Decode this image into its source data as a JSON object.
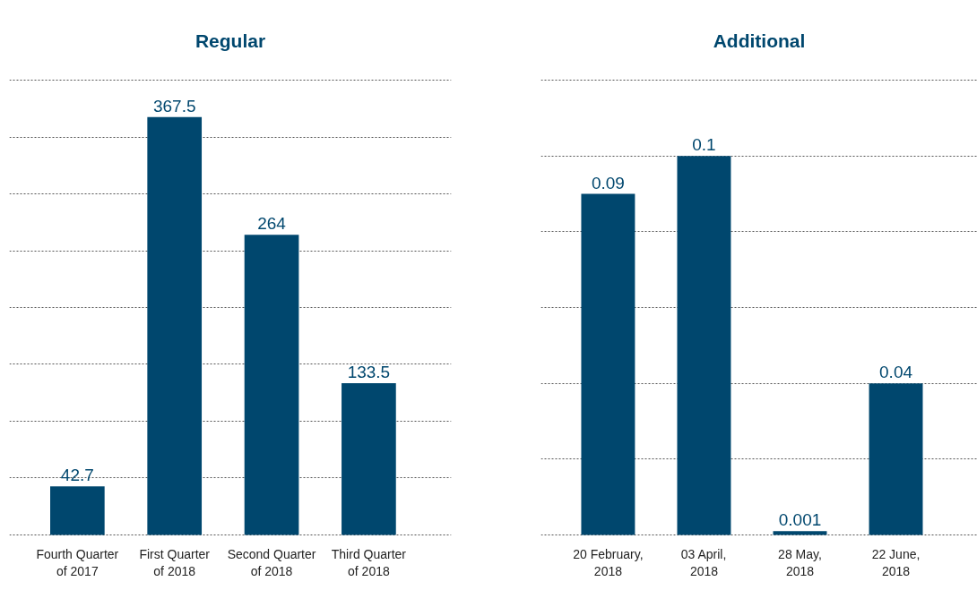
{
  "chart_data": [
    {
      "type": "bar",
      "title": "Regular",
      "categories": [
        "Fourth Quarter\nof 2017",
        "First Quarter\nof 2018",
        "Second Quarter\nof 2018",
        "Third Quarter\nof 2018"
      ],
      "series": [
        {
          "color": "#00476e",
          "values": [
            42.7,
            367.5,
            264,
            133.5
          ]
        }
      ],
      "yticks": [
        {
          "value": 0,
          "label": null
        },
        {
          "value": 50,
          "label": null
        },
        {
          "value": 100,
          "label": null
        },
        {
          "value": 150,
          "label": null
        },
        {
          "value": 200,
          "label": null
        },
        {
          "value": 250,
          "label": null
        },
        {
          "value": 300,
          "label": null
        },
        {
          "value": 350,
          "label": null
        },
        {
          "value": 400,
          "label": null
        }
      ],
      "data_labels": true,
      "grid": "y",
      "tick_labels": "x"
    },
    {
      "type": "bar",
      "title": "Additional",
      "categories": [
        "20 February,\n2018",
        "03 April,\n2018",
        "28 May,\n2018",
        "22 June,\n2018"
      ],
      "series": [
        {
          "color": "#00476e",
          "values": [
            0.09,
            0.1,
            0.001,
            0.04
          ]
        }
      ],
      "yticks": [
        {
          "value": 0,
          "label": null
        },
        {
          "value": 0.02,
          "label": null
        },
        {
          "value": 0.04,
          "label": null
        },
        {
          "value": 0.06,
          "label": null
        },
        {
          "value": 0.08,
          "label": null
        },
        {
          "value": 0.1,
          "label": null
        },
        {
          "value": 0.12,
          "label": null
        }
      ],
      "data_labels": true,
      "grid": "y",
      "tick_labels": "x"
    }
  ]
}
